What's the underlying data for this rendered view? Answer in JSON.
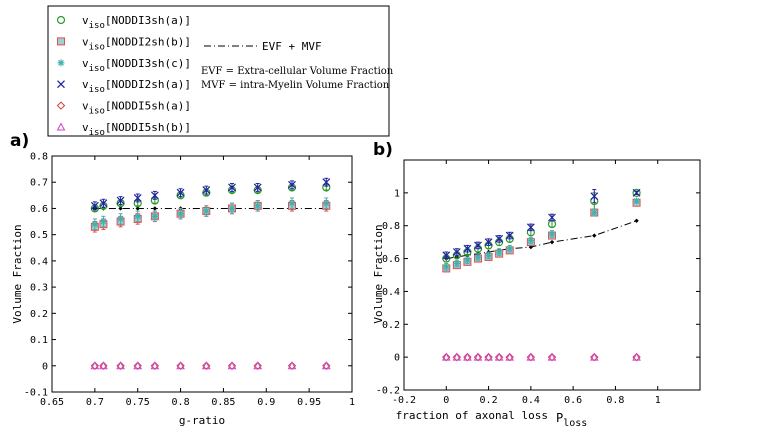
{
  "legend": {
    "series_prefix": "v",
    "series_sub": "iso",
    "items": [
      {
        "label": "[NODDI3sh(a)]",
        "marker": "circle",
        "color": "#2a9a2a"
      },
      {
        "label": "[NODDI2sh(b)]",
        "marker": "square",
        "color": "#e05050"
      },
      {
        "label": "[NODDI3sh(c)]",
        "marker": "asterisk",
        "color": "#40b0b0"
      },
      {
        "label": "[NODDI2sh(a)]",
        "marker": "x",
        "color": "#2020a0"
      },
      {
        "label": "[NODDI5sh(a)]",
        "marker": "diamond",
        "color": "#d04040"
      },
      {
        "label": "[NODDI5sh(b)]",
        "marker": "triangle",
        "color": "#d040d0"
      }
    ],
    "reference_label": "EVF + MVF",
    "notes": [
      "EVF = Extra-cellular Volume Fraction",
      "MVF = intra-Myelin Volume Fraction"
    ]
  },
  "colors": {
    "circle": "#2a9a2a",
    "square": "#e05050",
    "asterisk": "#40b0b0",
    "x": "#2020a0",
    "diamond": "#d04040",
    "triangle": "#d040d0",
    "square_fill": "#a0d0d0",
    "reference": "#000000"
  },
  "chart_data": [
    {
      "panel": "a)",
      "type": "scatter",
      "xlabel": "g-ratio",
      "ylabel": "Volume Fraction",
      "xlim": [
        0.65,
        1.0
      ],
      "ylim": [
        -0.1,
        0.8
      ],
      "xticks": [
        "0.65",
        "0.7",
        "0.75",
        "0.8",
        "0.85",
        "0.9",
        "0.95",
        "1"
      ],
      "yticks": [
        "-0.1",
        "0",
        "0.1",
        "0.2",
        "0.3",
        "0.4",
        "0.5",
        "0.6",
        "0.7",
        "0.8"
      ],
      "x": [
        0.7,
        0.71,
        0.73,
        0.75,
        0.77,
        0.8,
        0.83,
        0.86,
        0.89,
        0.93,
        0.97
      ],
      "series": [
        {
          "name": "NODDI3sh(a)",
          "marker": "circle",
          "values": [
            0.6,
            0.61,
            0.62,
            0.62,
            0.63,
            0.65,
            0.66,
            0.67,
            0.67,
            0.68,
            0.68
          ],
          "err": [
            0.01,
            0.01,
            0.01,
            0.01,
            0.01,
            0.01,
            0.01,
            0.01,
            0.01,
            0.01,
            0.01
          ]
        },
        {
          "name": "NODDI2sh(b)",
          "marker": "square",
          "values": [
            0.53,
            0.54,
            0.55,
            0.56,
            0.57,
            0.58,
            0.59,
            0.6,
            0.61,
            0.61,
            0.61
          ],
          "err": [
            0.02,
            0.02,
            0.02,
            0.02,
            0.02,
            0.02,
            0.02,
            0.02,
            0.02,
            0.02,
            0.02
          ]
        },
        {
          "name": "NODDI3sh(c)",
          "marker": "asterisk",
          "values": [
            0.54,
            0.55,
            0.56,
            0.57,
            0.57,
            0.58,
            0.59,
            0.6,
            0.61,
            0.62,
            0.62
          ],
          "err": [
            0.02,
            0.02,
            0.02,
            0.02,
            0.02,
            0.02,
            0.02,
            0.02,
            0.02,
            0.02,
            0.02
          ]
        },
        {
          "name": "NODDI2sh(a)",
          "marker": "x",
          "values": [
            0.61,
            0.62,
            0.63,
            0.64,
            0.65,
            0.66,
            0.67,
            0.68,
            0.68,
            0.69,
            0.7
          ],
          "err": [
            0.015,
            0.015,
            0.015,
            0.015,
            0.015,
            0.015,
            0.015,
            0.015,
            0.015,
            0.015,
            0.015
          ]
        },
        {
          "name": "NODDI5sh(a)",
          "marker": "diamond",
          "values": [
            0,
            0,
            0,
            0,
            0,
            0,
            0,
            0,
            0,
            0,
            0
          ],
          "err": null
        },
        {
          "name": "NODDI5sh(b)",
          "marker": "triangle",
          "values": [
            0,
            0,
            0,
            0,
            0,
            0,
            0,
            0,
            0,
            0,
            0
          ],
          "err": null
        }
      ],
      "reference": {
        "name": "EVF + MVF",
        "x": [
          0.7,
          0.71,
          0.73,
          0.75,
          0.77,
          0.8,
          0.83,
          0.86,
          0.89,
          0.93,
          0.97
        ],
        "values": [
          0.6,
          0.6,
          0.6,
          0.6,
          0.6,
          0.6,
          0.6,
          0.6,
          0.6,
          0.6,
          0.6
        ]
      }
    },
    {
      "panel": "b)",
      "type": "scatter",
      "xlabel": "fraction of axonal loss",
      "xlabel_suffix": "P",
      "xlabel_suffix_sub": "loss",
      "ylabel": "Volume Fraction",
      "xlim": [
        -0.2,
        1.2
      ],
      "ylim": [
        -0.2,
        1.2
      ],
      "xticks": [
        "-0.2",
        "0",
        "0.2",
        "0.4",
        "0.6",
        "0.8",
        "1"
      ],
      "yticks": [
        "-0.2",
        "0",
        "0.2",
        "0.4",
        "0.6",
        "0.8",
        "1"
      ],
      "x": [
        0.0,
        0.05,
        0.1,
        0.15,
        0.2,
        0.25,
        0.3,
        0.4,
        0.5,
        0.7,
        0.9
      ],
      "series": [
        {
          "name": "NODDI3sh(a)",
          "marker": "circle",
          "values": [
            0.6,
            0.62,
            0.64,
            0.66,
            0.68,
            0.7,
            0.72,
            0.76,
            0.81,
            0.95,
            1.0
          ],
          "err": [
            0.02,
            0.02,
            0.02,
            0.02,
            0.02,
            0.02,
            0.02,
            0.02,
            0.02,
            0.05,
            0.01
          ]
        },
        {
          "name": "NODDI2sh(b)",
          "marker": "square",
          "values": [
            0.54,
            0.56,
            0.58,
            0.6,
            0.61,
            0.63,
            0.65,
            0.7,
            0.74,
            0.88,
            0.94
          ],
          "err": [
            0.02,
            0.02,
            0.02,
            0.02,
            0.02,
            0.02,
            0.02,
            0.02,
            0.02,
            0.02,
            0.01
          ]
        },
        {
          "name": "NODDI3sh(c)",
          "marker": "asterisk",
          "values": [
            0.55,
            0.57,
            0.59,
            0.61,
            0.62,
            0.64,
            0.66,
            0.71,
            0.75,
            0.88,
            0.95
          ],
          "err": [
            0.02,
            0.02,
            0.02,
            0.02,
            0.02,
            0.02,
            0.02,
            0.02,
            0.02,
            0.02,
            0.01
          ]
        },
        {
          "name": "NODDI2sh(a)",
          "marker": "x",
          "values": [
            0.62,
            0.64,
            0.66,
            0.68,
            0.7,
            0.72,
            0.74,
            0.79,
            0.85,
            0.98,
            1.0
          ],
          "err": [
            0.02,
            0.02,
            0.02,
            0.02,
            0.02,
            0.02,
            0.02,
            0.02,
            0.02,
            0.04,
            0.01
          ]
        },
        {
          "name": "NODDI5sh(a)",
          "marker": "diamond",
          "values": [
            0,
            0,
            0,
            0,
            0,
            0,
            0,
            0,
            0,
            0,
            0
          ],
          "err": null
        },
        {
          "name": "NODDI5sh(b)",
          "marker": "triangle",
          "values": [
            0,
            0,
            0,
            0,
            0,
            0,
            0,
            0,
            0,
            0,
            0
          ],
          "err": null
        }
      ],
      "reference": {
        "name": "EVF + MVF",
        "x": [
          0.0,
          0.05,
          0.1,
          0.15,
          0.2,
          0.25,
          0.3,
          0.4,
          0.5,
          0.7,
          0.9
        ],
        "values": [
          0.6,
          0.61,
          0.62,
          0.63,
          0.64,
          0.65,
          0.66,
          0.67,
          0.7,
          0.74,
          0.83
        ]
      }
    }
  ]
}
